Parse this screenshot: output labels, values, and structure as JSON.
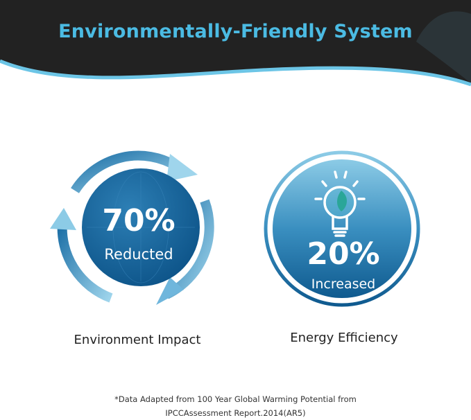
{
  "header": {
    "title": "Environmentally-Friendly System"
  },
  "colors": {
    "banner": "#222222",
    "title": "#4bbbe3",
    "accent_wave": "#6cc5e6",
    "disc_dark": "#0f5a8f",
    "disc_light": "#5aa8cf"
  },
  "stats": [
    {
      "value": "70%",
      "label": "Reducted",
      "caption": "Environment Impact",
      "icon": "recycle-arrows-icon"
    },
    {
      "value": "20%",
      "label": "Increased",
      "caption": "Energy Efficiency",
      "icon": "lightbulb-leaf-icon"
    }
  ],
  "footnote": {
    "line1": "*Data Adapted from 100 Year Global Warming Potential from",
    "line2": "IPCCAssessment Report.2014(AR5)"
  }
}
